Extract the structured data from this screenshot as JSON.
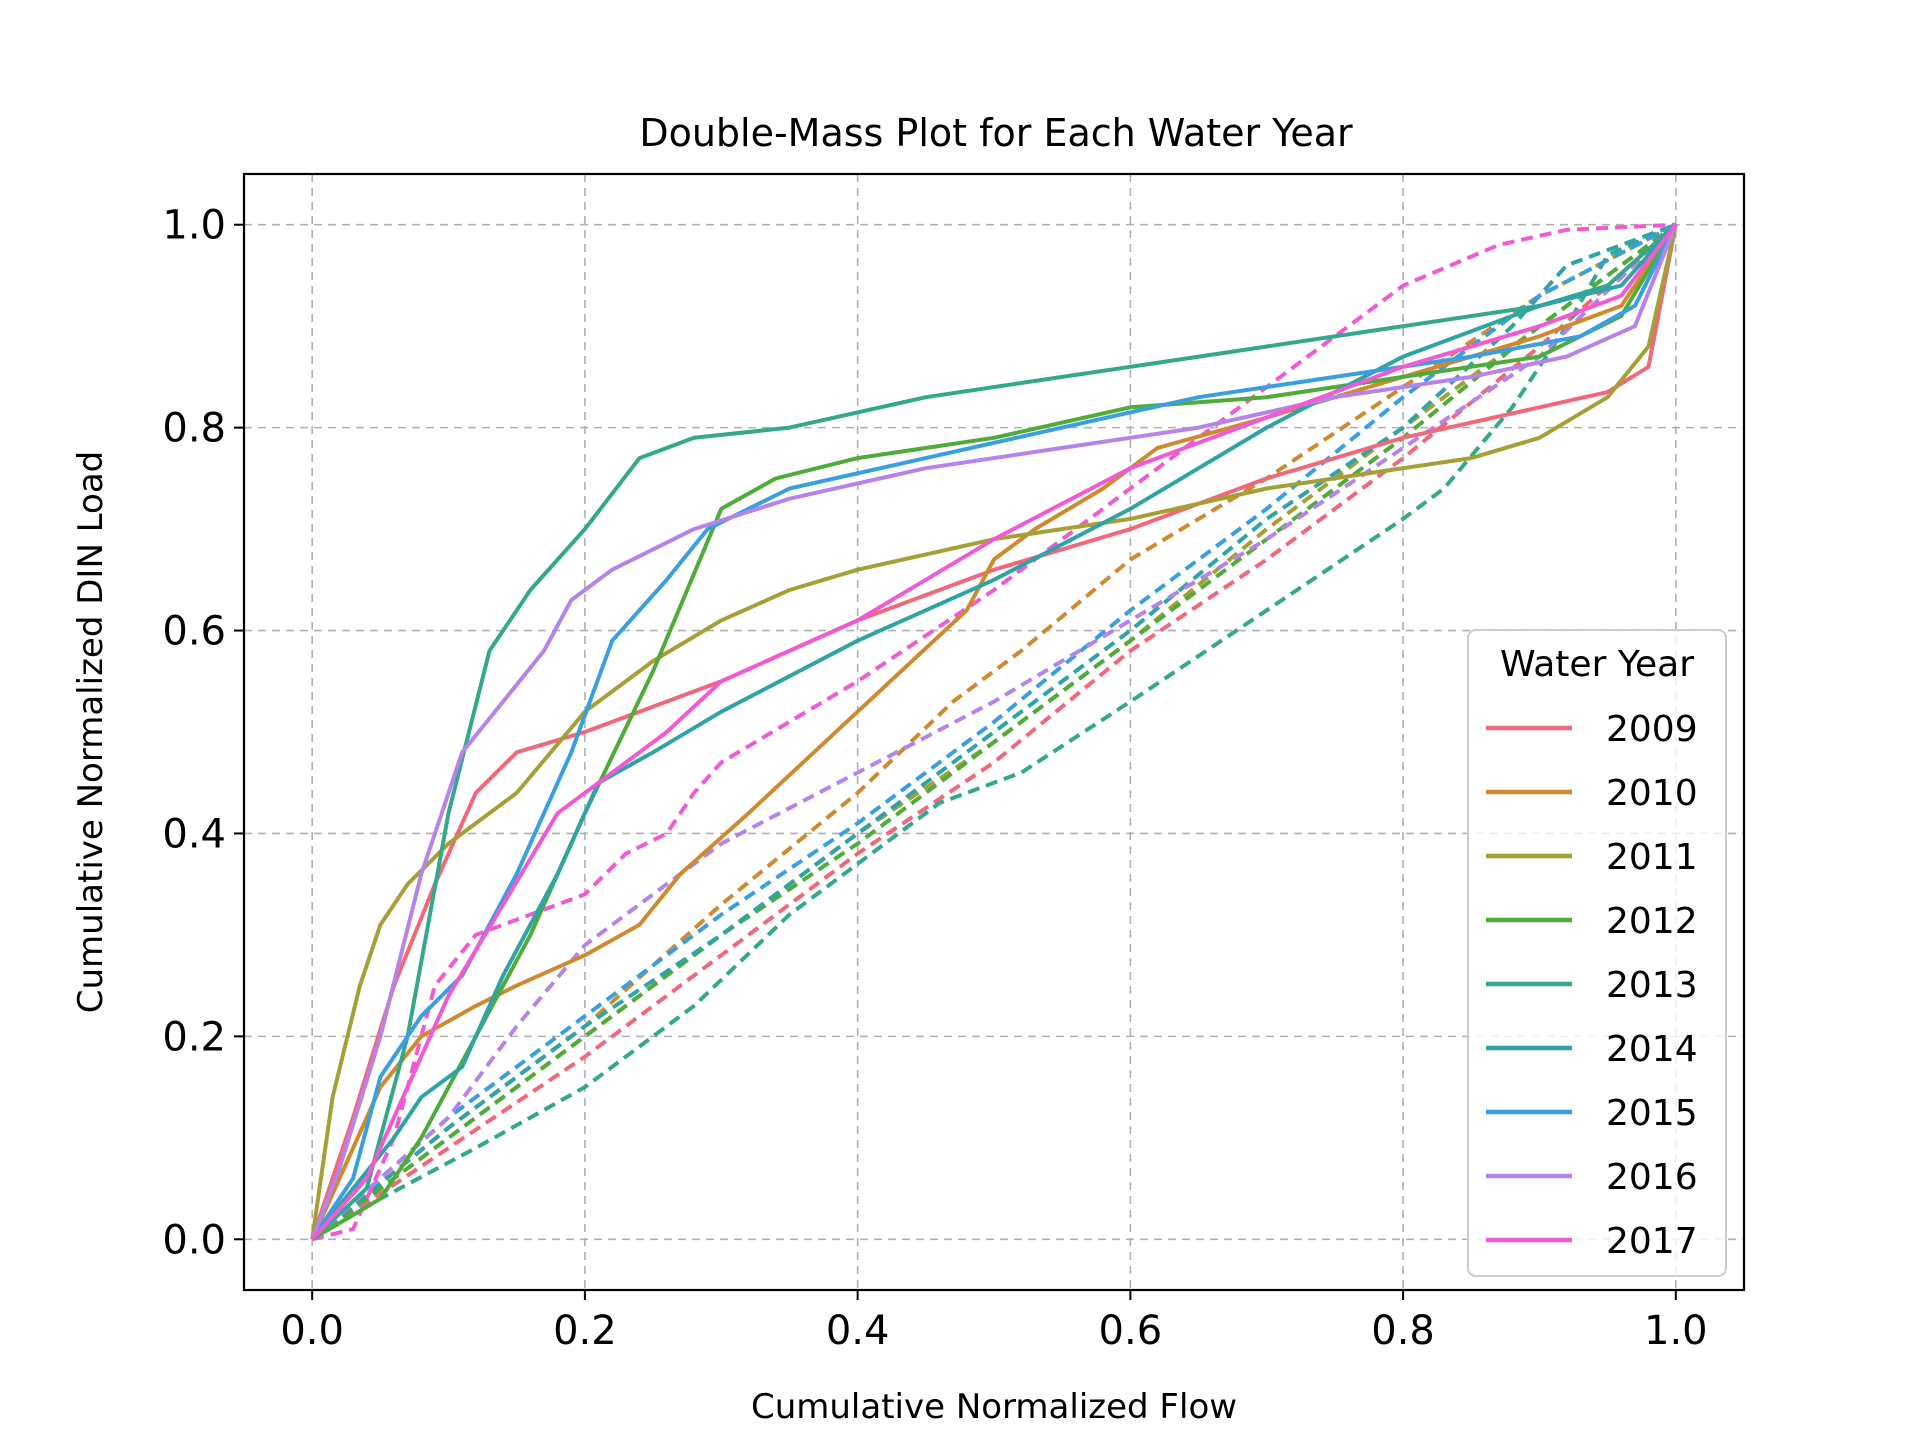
{
  "chart_data": {
    "type": "line",
    "title": "Double-Mass Plot for Each Water Year",
    "xlabel": "Cumulative Normalized Flow",
    "ylabel": "Cumulative Normalized DIN Load",
    "xlim": [
      -0.05,
      1.05
    ],
    "ylim": [
      -0.05,
      1.05
    ],
    "xticks": [
      "0.0",
      "0.2",
      "0.4",
      "0.6",
      "0.8",
      "1.0"
    ],
    "yticks": [
      "0.0",
      "0.2",
      "0.4",
      "0.6",
      "0.8",
      "1.0"
    ],
    "grid": true,
    "legend": {
      "title": "Water Year",
      "placement": "lower-right"
    },
    "series": [
      {
        "name": "2009",
        "color": "#f0687a",
        "solid": [
          [
            0,
            0
          ],
          [
            0.03,
            0.12
          ],
          [
            0.06,
            0.25
          ],
          [
            0.09,
            0.35
          ],
          [
            0.12,
            0.44
          ],
          [
            0.15,
            0.48
          ],
          [
            0.2,
            0.5
          ],
          [
            0.3,
            0.55
          ],
          [
            0.4,
            0.61
          ],
          [
            0.5,
            0.66
          ],
          [
            0.6,
            0.7
          ],
          [
            0.7,
            0.75
          ],
          [
            0.8,
            0.79
          ],
          [
            0.9,
            0.82
          ],
          [
            0.95,
            0.835
          ],
          [
            0.98,
            0.86
          ],
          [
            1,
            1
          ]
        ],
        "dashed": [
          [
            0,
            0
          ],
          [
            0.1,
            0.09
          ],
          [
            0.2,
            0.18
          ],
          [
            0.3,
            0.28
          ],
          [
            0.4,
            0.38
          ],
          [
            0.5,
            0.47
          ],
          [
            0.6,
            0.58
          ],
          [
            0.7,
            0.67
          ],
          [
            0.8,
            0.77
          ],
          [
            0.9,
            0.88
          ],
          [
            1,
            1
          ]
        ]
      },
      {
        "name": "2010",
        "color": "#cf8a30",
        "solid": [
          [
            0,
            0
          ],
          [
            0.02,
            0.06
          ],
          [
            0.05,
            0.15
          ],
          [
            0.08,
            0.2
          ],
          [
            0.12,
            0.23
          ],
          [
            0.15,
            0.25
          ],
          [
            0.2,
            0.28
          ],
          [
            0.24,
            0.31
          ],
          [
            0.27,
            0.36
          ],
          [
            0.32,
            0.42
          ],
          [
            0.4,
            0.52
          ],
          [
            0.48,
            0.62
          ],
          [
            0.5,
            0.67
          ],
          [
            0.53,
            0.7
          ],
          [
            0.58,
            0.74
          ],
          [
            0.62,
            0.78
          ],
          [
            0.7,
            0.81
          ],
          [
            0.8,
            0.85
          ],
          [
            0.9,
            0.89
          ],
          [
            0.96,
            0.92
          ],
          [
            1,
            1
          ]
        ],
        "dashed": [
          [
            0,
            0
          ],
          [
            0.1,
            0.11
          ],
          [
            0.2,
            0.21
          ],
          [
            0.3,
            0.33
          ],
          [
            0.4,
            0.44
          ],
          [
            0.47,
            0.53
          ],
          [
            0.52,
            0.58
          ],
          [
            0.6,
            0.67
          ],
          [
            0.7,
            0.75
          ],
          [
            0.8,
            0.84
          ],
          [
            0.9,
            0.93
          ],
          [
            1,
            1
          ]
        ]
      },
      {
        "name": "2011",
        "color": "#a5a035",
        "solid": [
          [
            0,
            0
          ],
          [
            0.015,
            0.14
          ],
          [
            0.035,
            0.25
          ],
          [
            0.05,
            0.31
          ],
          [
            0.07,
            0.35
          ],
          [
            0.1,
            0.39
          ],
          [
            0.15,
            0.44
          ],
          [
            0.2,
            0.52
          ],
          [
            0.25,
            0.57
          ],
          [
            0.3,
            0.61
          ],
          [
            0.35,
            0.64
          ],
          [
            0.4,
            0.66
          ],
          [
            0.5,
            0.69
          ],
          [
            0.6,
            0.71
          ],
          [
            0.7,
            0.74
          ],
          [
            0.8,
            0.76
          ],
          [
            0.85,
            0.77
          ],
          [
            0.9,
            0.79
          ],
          [
            0.95,
            0.83
          ],
          [
            0.98,
            0.88
          ],
          [
            1,
            1
          ]
        ],
        "dashed": [
          [
            0,
            0
          ],
          [
            0.1,
            0.1
          ],
          [
            0.2,
            0.2
          ],
          [
            0.3,
            0.3
          ],
          [
            0.4,
            0.4
          ],
          [
            0.5,
            0.49
          ],
          [
            0.6,
            0.59
          ],
          [
            0.7,
            0.7
          ],
          [
            0.8,
            0.8
          ],
          [
            0.9,
            0.9
          ],
          [
            1,
            1
          ]
        ]
      },
      {
        "name": "2012",
        "color": "#4fab3a",
        "solid": [
          [
            0,
            0
          ],
          [
            0.05,
            0.04
          ],
          [
            0.08,
            0.1
          ],
          [
            0.12,
            0.2
          ],
          [
            0.16,
            0.3
          ],
          [
            0.2,
            0.42
          ],
          [
            0.25,
            0.56
          ],
          [
            0.3,
            0.72
          ],
          [
            0.34,
            0.75
          ],
          [
            0.4,
            0.77
          ],
          [
            0.5,
            0.79
          ],
          [
            0.6,
            0.82
          ],
          [
            0.7,
            0.83
          ],
          [
            0.8,
            0.85
          ],
          [
            0.9,
            0.87
          ],
          [
            0.96,
            0.91
          ],
          [
            1,
            1
          ]
        ],
        "dashed": [
          [
            0,
            0
          ],
          [
            0.1,
            0.1
          ],
          [
            0.2,
            0.2
          ],
          [
            0.3,
            0.3
          ],
          [
            0.4,
            0.39
          ],
          [
            0.5,
            0.49
          ],
          [
            0.6,
            0.59
          ],
          [
            0.7,
            0.69
          ],
          [
            0.8,
            0.79
          ],
          [
            0.9,
            0.9
          ],
          [
            1,
            1
          ]
        ]
      },
      {
        "name": "2013",
        "color": "#33a98a",
        "solid": [
          [
            0,
            0
          ],
          [
            0.04,
            0.05
          ],
          [
            0.07,
            0.2
          ],
          [
            0.1,
            0.42
          ],
          [
            0.13,
            0.58
          ],
          [
            0.16,
            0.64
          ],
          [
            0.2,
            0.7
          ],
          [
            0.24,
            0.77
          ],
          [
            0.28,
            0.79
          ],
          [
            0.35,
            0.8
          ],
          [
            0.45,
            0.83
          ],
          [
            0.55,
            0.85
          ],
          [
            0.6,
            0.86
          ],
          [
            0.7,
            0.88
          ],
          [
            0.8,
            0.9
          ],
          [
            0.9,
            0.92
          ],
          [
            0.95,
            0.94
          ],
          [
            1,
            1
          ]
        ],
        "dashed": [
          [
            0,
            0
          ],
          [
            0.05,
            0.04
          ],
          [
            0.12,
            0.09
          ],
          [
            0.2,
            0.15
          ],
          [
            0.28,
            0.23
          ],
          [
            0.35,
            0.32
          ],
          [
            0.42,
            0.39
          ],
          [
            0.46,
            0.43
          ],
          [
            0.52,
            0.46
          ],
          [
            0.6,
            0.53
          ],
          [
            0.7,
            0.62
          ],
          [
            0.8,
            0.71
          ],
          [
            0.83,
            0.74
          ],
          [
            0.88,
            0.82
          ],
          [
            0.92,
            0.9
          ],
          [
            0.95,
            0.97
          ],
          [
            1,
            1
          ]
        ]
      },
      {
        "name": "2014",
        "color": "#2fa3a6",
        "solid": [
          [
            0,
            0
          ],
          [
            0.03,
            0.05
          ],
          [
            0.06,
            0.1
          ],
          [
            0.08,
            0.14
          ],
          [
            0.11,
            0.17
          ],
          [
            0.14,
            0.26
          ],
          [
            0.18,
            0.36
          ],
          [
            0.21,
            0.45
          ],
          [
            0.25,
            0.48
          ],
          [
            0.3,
            0.52
          ],
          [
            0.4,
            0.59
          ],
          [
            0.5,
            0.65
          ],
          [
            0.6,
            0.72
          ],
          [
            0.7,
            0.8
          ],
          [
            0.8,
            0.87
          ],
          [
            0.9,
            0.92
          ],
          [
            0.96,
            0.94
          ],
          [
            1,
            1
          ]
        ],
        "dashed": [
          [
            0,
            0
          ],
          [
            0.1,
            0.11
          ],
          [
            0.2,
            0.21
          ],
          [
            0.3,
            0.3
          ],
          [
            0.4,
            0.4
          ],
          [
            0.5,
            0.5
          ],
          [
            0.6,
            0.6
          ],
          [
            0.7,
            0.71
          ],
          [
            0.8,
            0.8
          ],
          [
            0.88,
            0.9
          ],
          [
            0.92,
            0.96
          ],
          [
            1,
            1
          ]
        ]
      },
      {
        "name": "2015",
        "color": "#3a9fe0",
        "solid": [
          [
            0,
            0
          ],
          [
            0.03,
            0.06
          ],
          [
            0.05,
            0.16
          ],
          [
            0.08,
            0.22
          ],
          [
            0.11,
            0.26
          ],
          [
            0.15,
            0.36
          ],
          [
            0.19,
            0.48
          ],
          [
            0.22,
            0.59
          ],
          [
            0.26,
            0.65
          ],
          [
            0.29,
            0.7
          ],
          [
            0.35,
            0.74
          ],
          [
            0.45,
            0.77
          ],
          [
            0.55,
            0.8
          ],
          [
            0.65,
            0.83
          ],
          [
            0.75,
            0.85
          ],
          [
            0.85,
            0.87
          ],
          [
            0.93,
            0.89
          ],
          [
            0.97,
            0.92
          ],
          [
            1,
            1
          ]
        ],
        "dashed": [
          [
            0,
            0
          ],
          [
            0.1,
            0.12
          ],
          [
            0.2,
            0.22
          ],
          [
            0.3,
            0.32
          ],
          [
            0.4,
            0.41
          ],
          [
            0.5,
            0.51
          ],
          [
            0.6,
            0.62
          ],
          [
            0.7,
            0.72
          ],
          [
            0.8,
            0.83
          ],
          [
            0.9,
            0.93
          ],
          [
            1,
            1
          ]
        ]
      },
      {
        "name": "2016",
        "color": "#b583ea",
        "solid": [
          [
            0,
            0
          ],
          [
            0.02,
            0.07
          ],
          [
            0.05,
            0.2
          ],
          [
            0.08,
            0.36
          ],
          [
            0.11,
            0.48
          ],
          [
            0.14,
            0.53
          ],
          [
            0.17,
            0.58
          ],
          [
            0.19,
            0.63
          ],
          [
            0.22,
            0.66
          ],
          [
            0.28,
            0.7
          ],
          [
            0.35,
            0.73
          ],
          [
            0.45,
            0.76
          ],
          [
            0.55,
            0.78
          ],
          [
            0.65,
            0.8
          ],
          [
            0.75,
            0.83
          ],
          [
            0.85,
            0.85
          ],
          [
            0.92,
            0.87
          ],
          [
            0.97,
            0.9
          ],
          [
            1,
            1
          ]
        ],
        "dashed": [
          [
            0,
            0
          ],
          [
            0.05,
            0.06
          ],
          [
            0.1,
            0.12
          ],
          [
            0.15,
            0.21
          ],
          [
            0.2,
            0.29
          ],
          [
            0.25,
            0.34
          ],
          [
            0.3,
            0.39
          ],
          [
            0.4,
            0.46
          ],
          [
            0.5,
            0.53
          ],
          [
            0.6,
            0.61
          ],
          [
            0.7,
            0.69
          ],
          [
            0.8,
            0.78
          ],
          [
            0.9,
            0.87
          ],
          [
            1,
            1
          ]
        ]
      },
      {
        "name": "2017",
        "color": "#f25ad4",
        "solid": [
          [
            0,
            0
          ],
          [
            0.04,
            0.06
          ],
          [
            0.07,
            0.15
          ],
          [
            0.1,
            0.24
          ],
          [
            0.14,
            0.33
          ],
          [
            0.18,
            0.42
          ],
          [
            0.22,
            0.46
          ],
          [
            0.26,
            0.5
          ],
          [
            0.3,
            0.55
          ],
          [
            0.35,
            0.58
          ],
          [
            0.4,
            0.61
          ],
          [
            0.5,
            0.69
          ],
          [
            0.6,
            0.76
          ],
          [
            0.7,
            0.81
          ],
          [
            0.8,
            0.86
          ],
          [
            0.9,
            0.9
          ],
          [
            0.96,
            0.93
          ],
          [
            1,
            1
          ]
        ],
        "dashed": [
          [
            0,
            0
          ],
          [
            0.03,
            0.01
          ],
          [
            0.06,
            0.1
          ],
          [
            0.09,
            0.25
          ],
          [
            0.12,
            0.3
          ],
          [
            0.2,
            0.34
          ],
          [
            0.23,
            0.38
          ],
          [
            0.26,
            0.4
          ],
          [
            0.28,
            0.44
          ],
          [
            0.3,
            0.47
          ],
          [
            0.4,
            0.55
          ],
          [
            0.5,
            0.64
          ],
          [
            0.6,
            0.74
          ],
          [
            0.7,
            0.84
          ],
          [
            0.8,
            0.94
          ],
          [
            0.87,
            0.98
          ],
          [
            0.92,
            0.995
          ],
          [
            1,
            1
          ]
        ]
      }
    ]
  }
}
